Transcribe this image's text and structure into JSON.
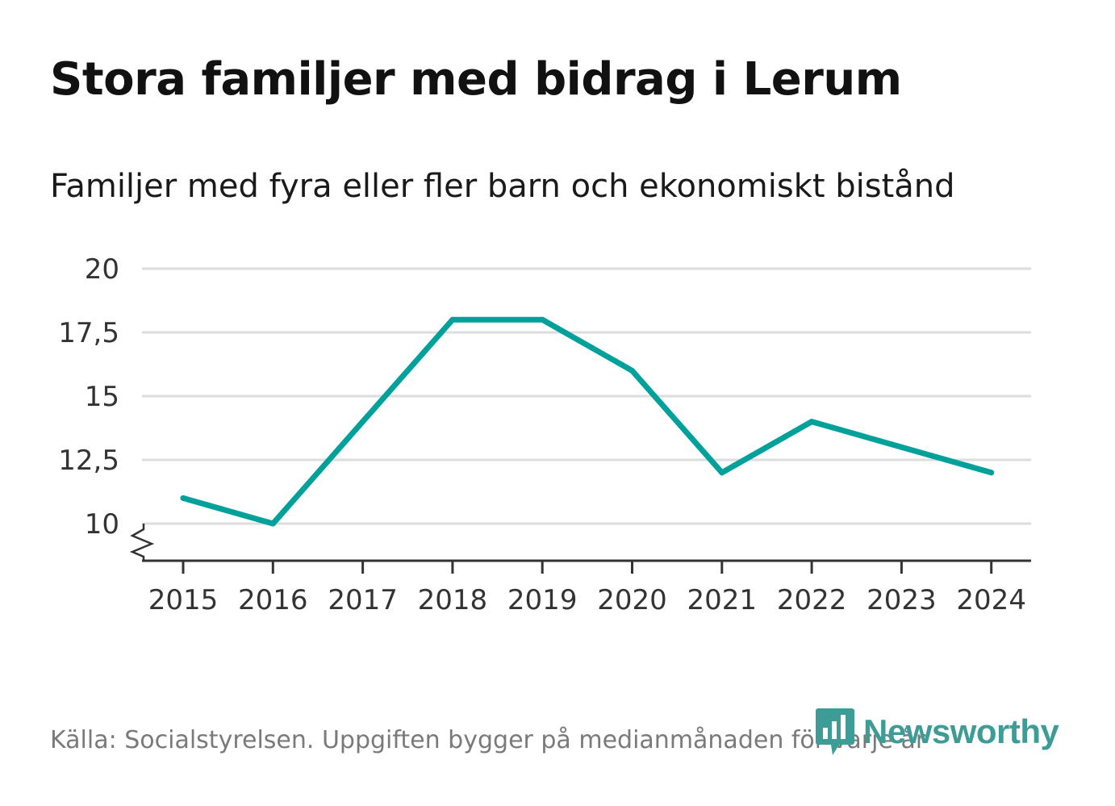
{
  "header": {
    "title": "Stora familjer med bidrag i Lerum",
    "subtitle": "Familjer med fyra eller fler barn och ekonomiskt bistånd"
  },
  "footer": {
    "source": "Källa: Socialstyrelsen. Uppgiften bygger på medianmånaden för varje år",
    "brand": "Newsworthy",
    "brand_icon": "bar-chart-speech-bubble-icon"
  },
  "colors": {
    "line": "#00a19a",
    "grid": "#dddddd",
    "axis": "#333333",
    "brand": "#3d9d96"
  },
  "chart_data": {
    "type": "line",
    "title": "Stora familjer med bidrag i Lerum",
    "subtitle": "Familjer med fyra eller fler barn och ekonomiskt bistånd",
    "xlabel": "",
    "ylabel": "",
    "categories": [
      "2015",
      "2016",
      "2017",
      "2018",
      "2019",
      "2020",
      "2021",
      "2022",
      "2023",
      "2024"
    ],
    "series": [
      {
        "name": "Familjer med fyra eller fler barn och ekonomiskt bistånd",
        "values": [
          11,
          10,
          14,
          18,
          18,
          16,
          12,
          14,
          13,
          12
        ]
      }
    ],
    "yticks": [
      10,
      12.5,
      15,
      17.5,
      20
    ],
    "ytick_labels": [
      "10",
      "12,5",
      "15",
      "17,5",
      "20"
    ],
    "ylim": [
      8.6,
      20
    ],
    "y_axis_break": true,
    "grid": "horizontal",
    "legend": "none"
  }
}
